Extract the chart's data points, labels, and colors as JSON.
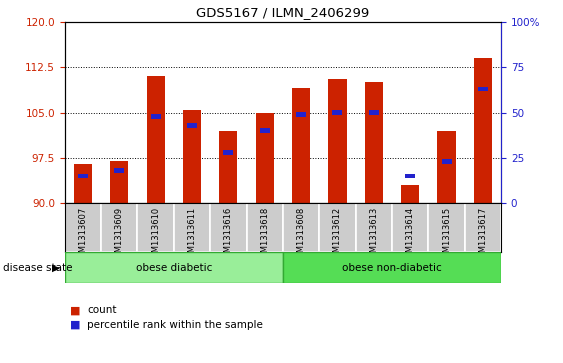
{
  "title": "GDS5167 / ILMN_2406299",
  "samples": [
    "GSM1313607",
    "GSM1313609",
    "GSM1313610",
    "GSM1313611",
    "GSM1313616",
    "GSM1313618",
    "GSM1313608",
    "GSM1313612",
    "GSM1313613",
    "GSM1313614",
    "GSM1313615",
    "GSM1313617"
  ],
  "counts": [
    96.5,
    97.0,
    111.0,
    105.5,
    102.0,
    105.0,
    109.0,
    110.5,
    110.0,
    93.0,
    102.0,
    114.0
  ],
  "percentiles": [
    15,
    18,
    48,
    43,
    28,
    40,
    49,
    50,
    50,
    15,
    23,
    63
  ],
  "ymin": 90,
  "ymax": 120,
  "yticks": [
    90,
    97.5,
    105,
    112.5,
    120
  ],
  "bar_color": "#cc2200",
  "percentile_color": "#2222cc",
  "bar_width": 0.5,
  "groups": [
    {
      "label": "obese diabetic",
      "indices": [
        0,
        1,
        2,
        3,
        4,
        5
      ],
      "color": "#99ee99"
    },
    {
      "label": "obese non-diabetic",
      "indices": [
        6,
        7,
        8,
        9,
        10,
        11
      ],
      "color": "#55dd55"
    }
  ],
  "disease_state_label": "disease state",
  "legend_count_label": "count",
  "legend_percentile_label": "percentile rank within the sample",
  "left_tick_color": "#cc2200",
  "right_tick_color": "#2222cc",
  "right_yticks": [
    0,
    25,
    50,
    75,
    100
  ],
  "right_yticklabels": [
    "0",
    "25",
    "50",
    "75",
    "100%"
  ],
  "plot_bg": "#ffffff",
  "label_bg": "#cccccc"
}
